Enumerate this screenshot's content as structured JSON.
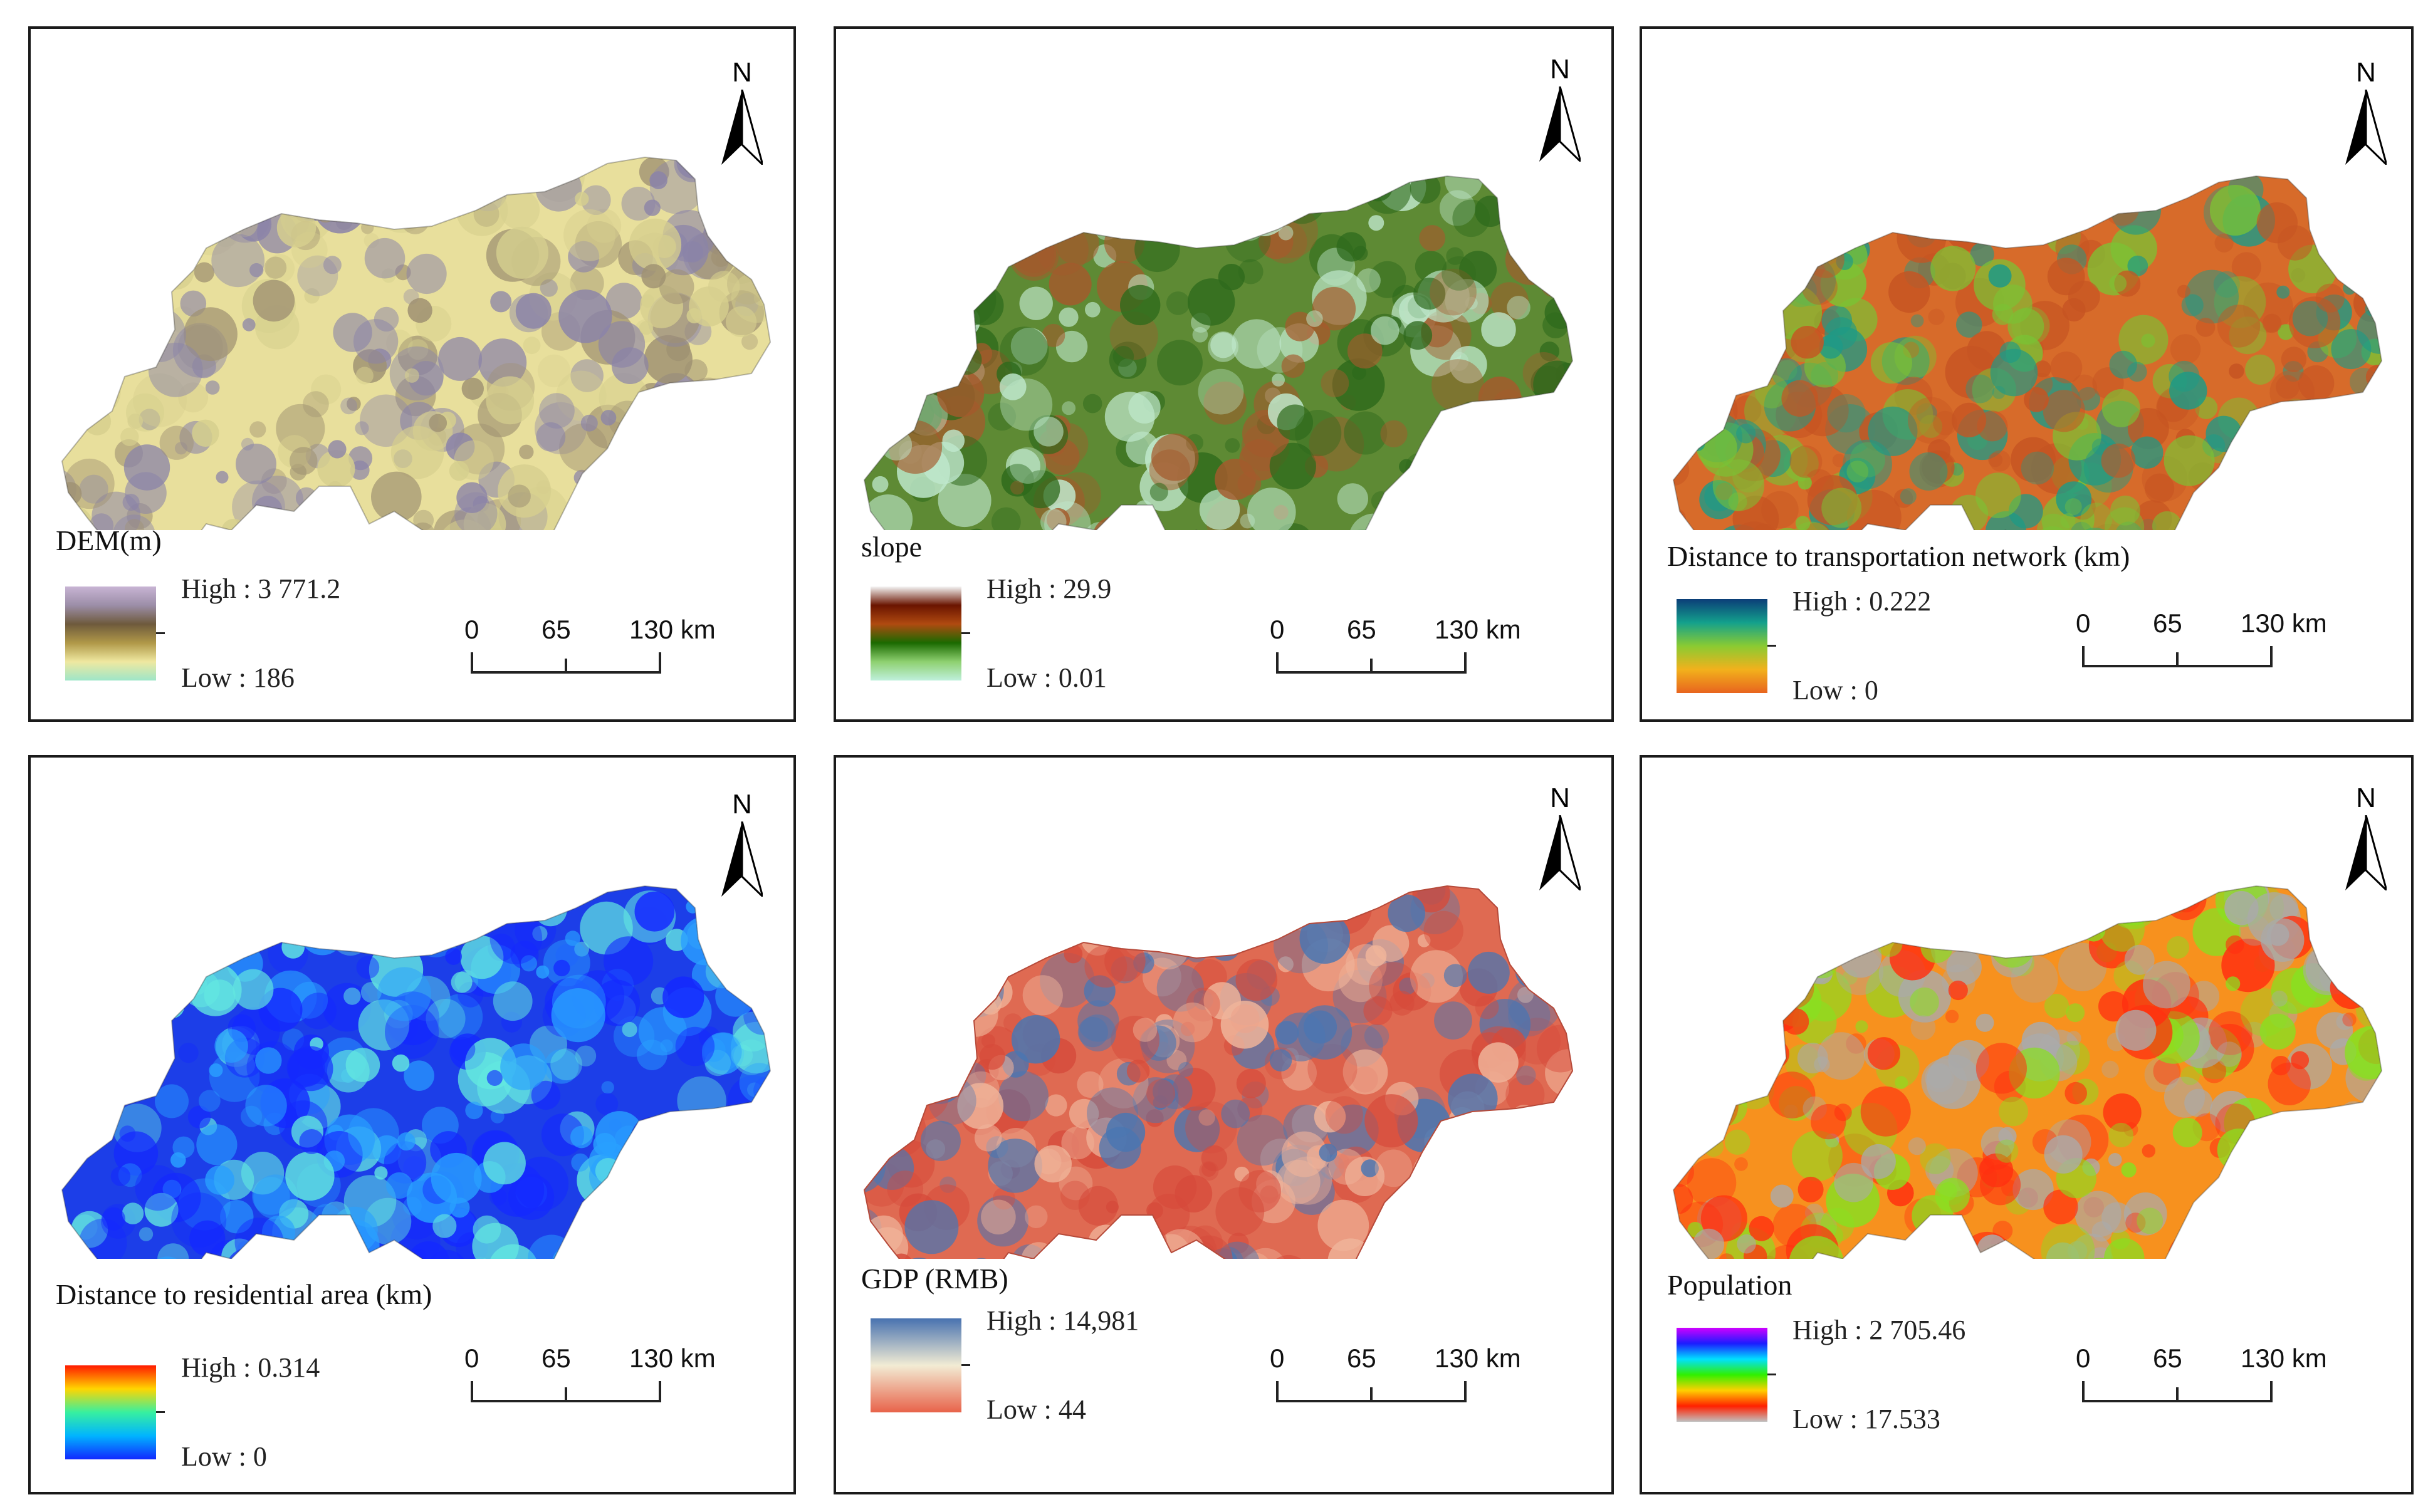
{
  "north_label": "N",
  "scale": {
    "tick_0": "0",
    "tick_1": "65",
    "tick_2": "130 km"
  },
  "panels": [
    {
      "id": "dem",
      "legend_title": "DEM(m)",
      "high": "High : 3 771.2",
      "low": "Low : 186",
      "ramp": [
        "#c8b4d4",
        "#9c8ea8",
        "#6e5a3c",
        "#b09848",
        "#efe8a0",
        "#9ee6c8"
      ],
      "map_colors": [
        "#e8df9c",
        "#9f9172",
        "#8a83a8",
        "#d6cf8e"
      ]
    },
    {
      "id": "slope",
      "legend_title": "slope",
      "high": "High : 29.9",
      "low": "Low : 0.01",
      "ramp": [
        "#f4f4f4",
        "#6a1400",
        "#b04a10",
        "#1a6a00",
        "#8ed070",
        "#bff0dc"
      ],
      "map_colors": [
        "#5e8a34",
        "#a45a2c",
        "#bfe8cc",
        "#2e6a1c"
      ]
    },
    {
      "id": "transport",
      "legend_title": "Distance to transportation network (km)",
      "high": "High : 0.222",
      "low": "Low : 0",
      "ramp": [
        "#0b3e78",
        "#13a08c",
        "#8acb32",
        "#f2b11c",
        "#e8641e"
      ],
      "map_colors": [
        "#d76b2a",
        "#c65422",
        "#7bc234",
        "#1e9a86"
      ]
    },
    {
      "id": "residential",
      "legend_title": "Distance to residential area (km)",
      "high": "High : 0.314",
      "low": "Low : 0",
      "ramp": [
        "#ff1a00",
        "#ffd500",
        "#37f0a0",
        "#00b4ff",
        "#1228ff"
      ],
      "map_colors": [
        "#1c3ee8",
        "#29a0ff",
        "#1428ff",
        "#63e8e0"
      ]
    },
    {
      "id": "gdp",
      "legend_title": "GDP (RMB)",
      "high": "High : 14,981",
      "low": "Low : 44",
      "ramp": [
        "#4872b0",
        "#f2ecd4",
        "#e8634a"
      ],
      "map_colors": [
        "#df6a52",
        "#d64a3a",
        "#f0b49a",
        "#4a76b2"
      ]
    },
    {
      "id": "population",
      "legend_title": "Population",
      "high": "High : 2 705.46",
      "low": "Low : 17.533",
      "ramp": [
        "#d000ff",
        "#1c1cff",
        "#00e0ff",
        "#30f000",
        "#ffd000",
        "#ff2000",
        "#c0c0c0"
      ],
      "map_colors": [
        "#f7911e",
        "#aaaaaa",
        "#88e020",
        "#ff3010"
      ]
    }
  ]
}
